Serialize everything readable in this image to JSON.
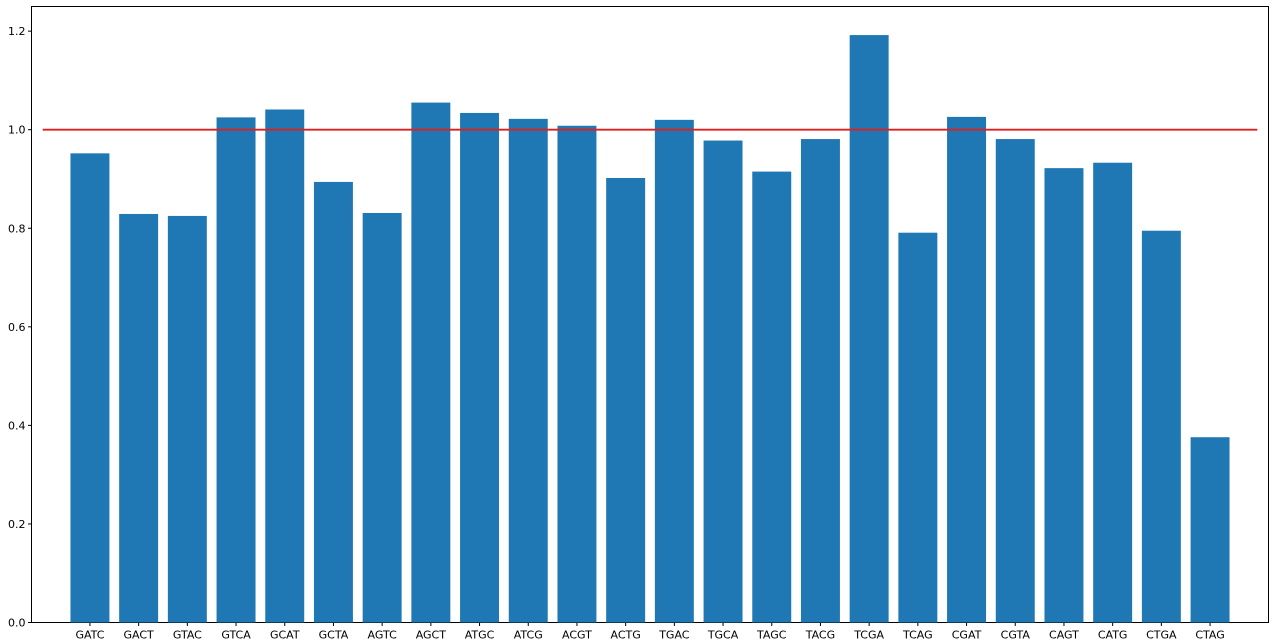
{
  "chart_data": {
    "type": "bar",
    "title": "",
    "xlabel": "",
    "ylabel": "",
    "categories": [
      "GATC",
      "GACT",
      "GTAC",
      "GTCA",
      "GCAT",
      "GCTA",
      "AGTC",
      "AGCT",
      "ATGC",
      "ATCG",
      "ACGT",
      "ACTG",
      "TGAC",
      "TGCA",
      "TAGC",
      "TACG",
      "TCGA",
      "TCAG",
      "CGAT",
      "CGTA",
      "CAGT",
      "CATG",
      "CTGA",
      "CTAG"
    ],
    "values": [
      0.952,
      0.829,
      0.825,
      1.025,
      1.041,
      0.894,
      0.831,
      1.055,
      1.034,
      1.022,
      1.008,
      0.902,
      1.02,
      0.978,
      0.915,
      0.981,
      1.192,
      0.791,
      1.026,
      0.981,
      0.922,
      0.933,
      0.795,
      0.376
    ],
    "ylim": [
      0,
      1.25
    ],
    "yticks": [
      0.0,
      0.2,
      0.4,
      0.6,
      0.8,
      1.0,
      1.2
    ],
    "ytick_labels": [
      "0.0",
      "0.2",
      "0.4",
      "0.6",
      "0.8",
      "1.0",
      "1.2"
    ],
    "reference_line": {
      "y": 1.0,
      "x_start": -0.97,
      "x_end": 23.97
    },
    "grid": false,
    "colors": {
      "bar": "#1f77b4",
      "reference_line": "#e01f1f",
      "axis": "#000000"
    }
  }
}
